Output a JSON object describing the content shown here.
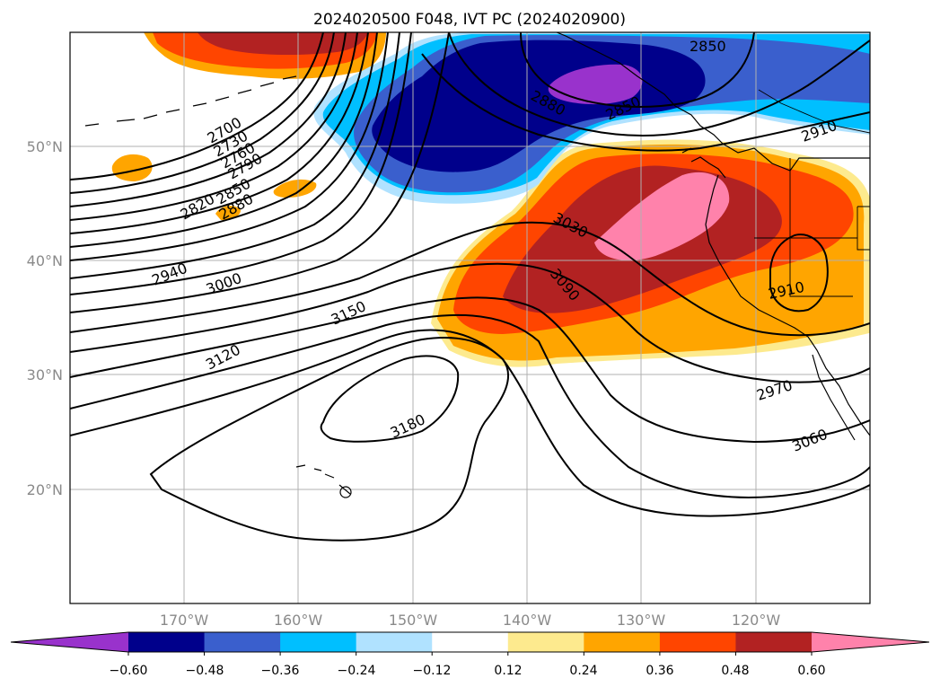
{
  "chart_data": {
    "type": "heatmap",
    "title": "2024020500 F048, IVT PC (2024020900)",
    "x_ticks": [
      "170°W",
      "160°W",
      "150°W",
      "140°W",
      "130°W",
      "120°W"
    ],
    "y_ticks": [
      "50°N",
      "40°N",
      "30°N",
      "20°N"
    ],
    "xlim": [
      -180,
      -110
    ],
    "ylim": [
      10,
      60
    ],
    "grid": true,
    "colorbar": {
      "orientation": "horizontal",
      "placement": "bottom",
      "extend": "both",
      "tick_labels": [
        "−0.60",
        "−0.48",
        "−0.36",
        "−0.24",
        "−0.12",
        "0.12",
        "0.24",
        "0.36",
        "0.48",
        "0.60"
      ],
      "colors": [
        "#9932cc",
        "#00008b",
        "#3a5fcd",
        "#00bfff",
        "#b0e2ff",
        "#ffffff",
        "#fdea8e",
        "#ffa500",
        "#ff4500",
        "#b22222",
        "#ff82ab"
      ]
    },
    "contour_labels": [
      "2700",
      "2730",
      "2760",
      "2790",
      "2820",
      "2850",
      "2880",
      "2940",
      "3000",
      "3120",
      "3150",
      "3180",
      "3030",
      "3090",
      "2970",
      "3060",
      "2910",
      "2910",
      "2850",
      "2880",
      "2850"
    ]
  }
}
